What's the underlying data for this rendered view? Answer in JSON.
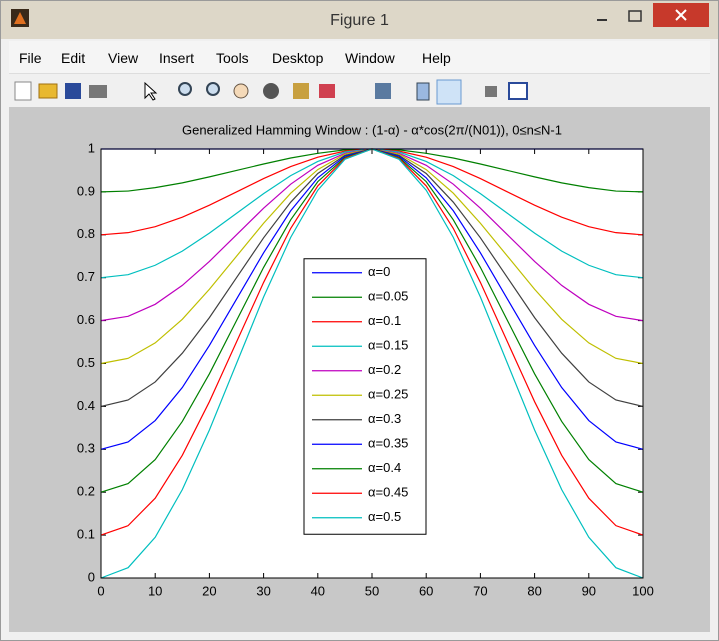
{
  "window": {
    "title": "Figure 1",
    "menu": [
      "File",
      "Edit",
      "View",
      "Insert",
      "Tools",
      "Desktop",
      "Window",
      "Help"
    ]
  },
  "chart_data": {
    "type": "line",
    "title": "Generalized Hamming Window : (1-α) - α*cos(2π/(N01)), 0≤n≤N-1",
    "x": [
      0,
      5,
      10,
      15,
      20,
      25,
      30,
      35,
      40,
      45,
      50,
      55,
      60,
      65,
      70,
      75,
      80,
      85,
      90,
      95,
      100
    ],
    "xlim": [
      0,
      100
    ],
    "xticks": [
      0,
      10,
      20,
      30,
      40,
      50,
      60,
      70,
      80,
      90,
      100
    ],
    "ylim": [
      0,
      1
    ],
    "yticks": [
      0,
      0.1,
      0.2,
      0.3,
      0.4,
      0.5,
      0.6,
      0.7,
      0.8,
      0.9,
      1
    ],
    "grid": false,
    "legend": "center",
    "series": [
      {
        "name": "α=0",
        "color": "#0000ff",
        "values": [
          1,
          1,
          1,
          1,
          1,
          1,
          1,
          1,
          1,
          1,
          1,
          1,
          1,
          1,
          1,
          1,
          1,
          1,
          1,
          1,
          1
        ]
      },
      {
        "name": "α=0.05",
        "color": "#008000",
        "values": [
          0.9,
          0.902,
          0.91,
          0.921,
          0.935,
          0.95,
          0.965,
          0.979,
          0.99,
          0.998,
          1,
          0.998,
          0.99,
          0.979,
          0.965,
          0.95,
          0.935,
          0.921,
          0.91,
          0.902,
          0.9
        ]
      },
      {
        "name": "α=0.1",
        "color": "#ff0000",
        "values": [
          0.8,
          0.805,
          0.819,
          0.841,
          0.869,
          0.9,
          0.931,
          0.959,
          0.981,
          0.995,
          1,
          0.995,
          0.981,
          0.959,
          0.931,
          0.9,
          0.869,
          0.841,
          0.819,
          0.805,
          0.8
        ]
      },
      {
        "name": "α=0.15",
        "color": "#00bfbf",
        "values": [
          0.7,
          0.707,
          0.729,
          0.762,
          0.804,
          0.85,
          0.896,
          0.938,
          0.971,
          0.993,
          1,
          0.993,
          0.971,
          0.938,
          0.896,
          0.85,
          0.804,
          0.762,
          0.729,
          0.707,
          0.7
        ]
      },
      {
        "name": "α=0.2",
        "color": "#bf00bf",
        "values": [
          0.6,
          0.61,
          0.638,
          0.682,
          0.738,
          0.8,
          0.862,
          0.918,
          0.962,
          0.99,
          1,
          0.99,
          0.962,
          0.918,
          0.862,
          0.8,
          0.738,
          0.682,
          0.638,
          0.61,
          0.6
        ]
      },
      {
        "name": "α=0.25",
        "color": "#bfbf00",
        "values": [
          0.5,
          0.512,
          0.548,
          0.603,
          0.673,
          0.75,
          0.827,
          0.897,
          0.952,
          0.988,
          1,
          0.988,
          0.952,
          0.897,
          0.827,
          0.75,
          0.673,
          0.603,
          0.548,
          0.512,
          0.5
        ]
      },
      {
        "name": "α=0.3",
        "color": "#404040",
        "values": [
          0.4,
          0.415,
          0.457,
          0.524,
          0.607,
          0.7,
          0.793,
          0.876,
          0.943,
          0.985,
          1,
          0.985,
          0.943,
          0.876,
          0.793,
          0.7,
          0.607,
          0.524,
          0.457,
          0.415,
          0.4
        ]
      },
      {
        "name": "α=0.35",
        "color": "#0000ff",
        "values": [
          0.3,
          0.317,
          0.367,
          0.444,
          0.542,
          0.65,
          0.758,
          0.856,
          0.933,
          0.983,
          1,
          0.983,
          0.933,
          0.856,
          0.758,
          0.65,
          0.542,
          0.444,
          0.367,
          0.317,
          0.3
        ]
      },
      {
        "name": "α=0.4",
        "color": "#008000",
        "values": [
          0.2,
          0.22,
          0.276,
          0.365,
          0.476,
          0.6,
          0.724,
          0.835,
          0.924,
          0.98,
          1,
          0.98,
          0.924,
          0.835,
          0.724,
          0.6,
          0.476,
          0.365,
          0.276,
          0.22,
          0.2
        ]
      },
      {
        "name": "α=0.45",
        "color": "#ff0000",
        "values": [
          0.1,
          0.122,
          0.186,
          0.286,
          0.411,
          0.55,
          0.689,
          0.815,
          0.914,
          0.978,
          1,
          0.978,
          0.914,
          0.815,
          0.689,
          0.55,
          0.411,
          0.286,
          0.186,
          0.122,
          0.1
        ]
      },
      {
        "name": "α=0.5",
        "color": "#00bfbf",
        "values": [
          0,
          0.024,
          0.095,
          0.206,
          0.345,
          0.5,
          0.655,
          0.794,
          0.904,
          0.976,
          1,
          0.976,
          0.904,
          0.794,
          0.655,
          0.5,
          0.345,
          0.206,
          0.095,
          0.024,
          0
        ]
      }
    ]
  }
}
